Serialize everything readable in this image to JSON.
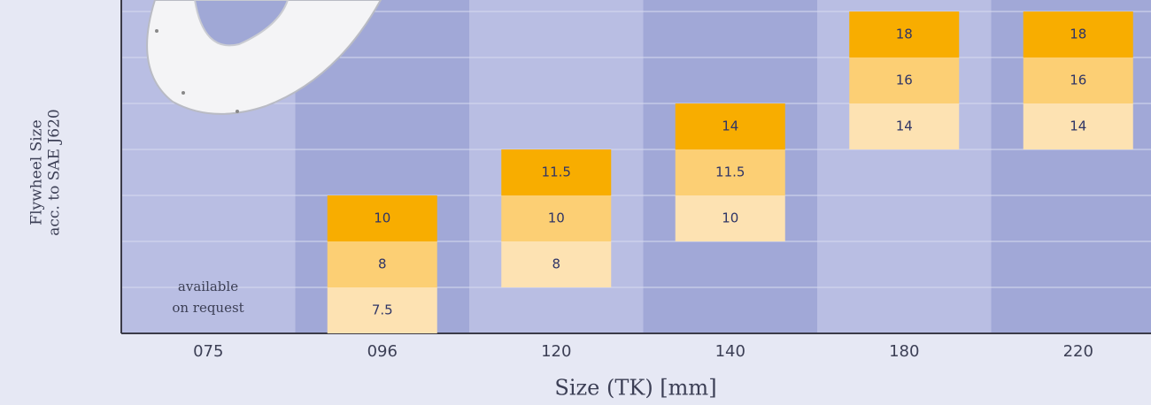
{
  "chart_data": {
    "type": "matrix",
    "x_label": "Size (TK) [mm]",
    "y_label": [
      "Flywheel Size",
      "acc. to SAE J620"
    ],
    "categories": [
      "075",
      "096",
      "120",
      "140",
      "180",
      "220"
    ],
    "values": [
      [],
      [
        10,
        8,
        7.5
      ],
      [
        11.5,
        10,
        8
      ],
      [
        14,
        11.5,
        10
      ],
      [
        18,
        16,
        14
      ],
      [
        18,
        16,
        14
      ]
    ],
    "note": [
      "available",
      "on request"
    ],
    "colors": [
      "#f8ad00",
      "#fccf74",
      "#fde2b2"
    ]
  }
}
